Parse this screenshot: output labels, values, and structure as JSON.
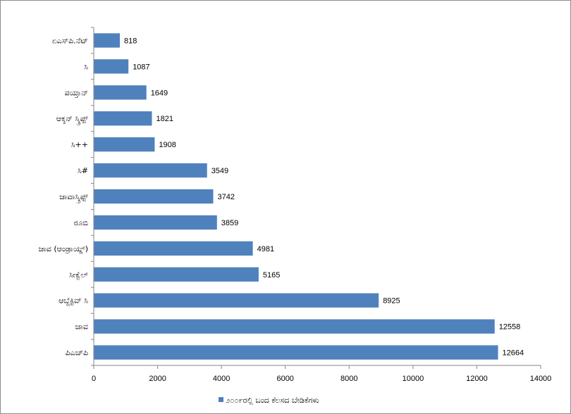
{
  "chart_data": {
    "type": "bar",
    "orientation": "horizontal",
    "categories": [
      "ಪಿಎಚ್‌ಪಿ",
      "ಜಾವ",
      "ಆಬ್ಜೆಕ್ಟಿವ್ ಸಿ",
      "ಸೀಕ್ವೆಲ್",
      "ಜಾವ (ಆಂಡ್ರಾಯ್ಡ್)",
      "ರೂಬಿ",
      "ಜಾವಾಸ್ಕ್ರಿಪ್ಟ್",
      "ಸಿ#",
      "ಸಿ++",
      "ಆಕ್ಶನ್ ಸ್ಕ್ರಿಪ್ಟ್",
      "ಪಯ್ತಾನ್",
      "ಸಿ",
      "ಏಎಸ್‌ಪಿ.ನೆಟ್"
    ],
    "series": [
      {
        "name": "೨೦೦೯ರಲ್ಲಿ ಬಂದ ಕೆಲಸದ ಬೇಡಿಕೆಗಳು",
        "values": [
          12664,
          12558,
          8925,
          5165,
          4981,
          3859,
          3742,
          3549,
          1908,
          1821,
          1649,
          1087,
          818
        ],
        "value_labels": [
          "12664",
          "12558",
          "8925",
          "5165",
          "4981",
          "3859",
          "3742",
          "3549",
          "1908",
          "1821",
          "1649",
          "1087",
          "818"
        ]
      }
    ],
    "xlim": [
      0,
      14000
    ],
    "x_ticks": [
      0,
      2000,
      4000,
      6000,
      8000,
      10000,
      12000,
      14000
    ],
    "x_tick_labels": [
      "0",
      "2000",
      "4000",
      "6000",
      "8000",
      "10000",
      "12000",
      "14000"
    ],
    "grid": false,
    "legend_position": "bottom",
    "bar_color": "#4f81bd",
    "title": "",
    "xlabel": "",
    "ylabel": ""
  }
}
